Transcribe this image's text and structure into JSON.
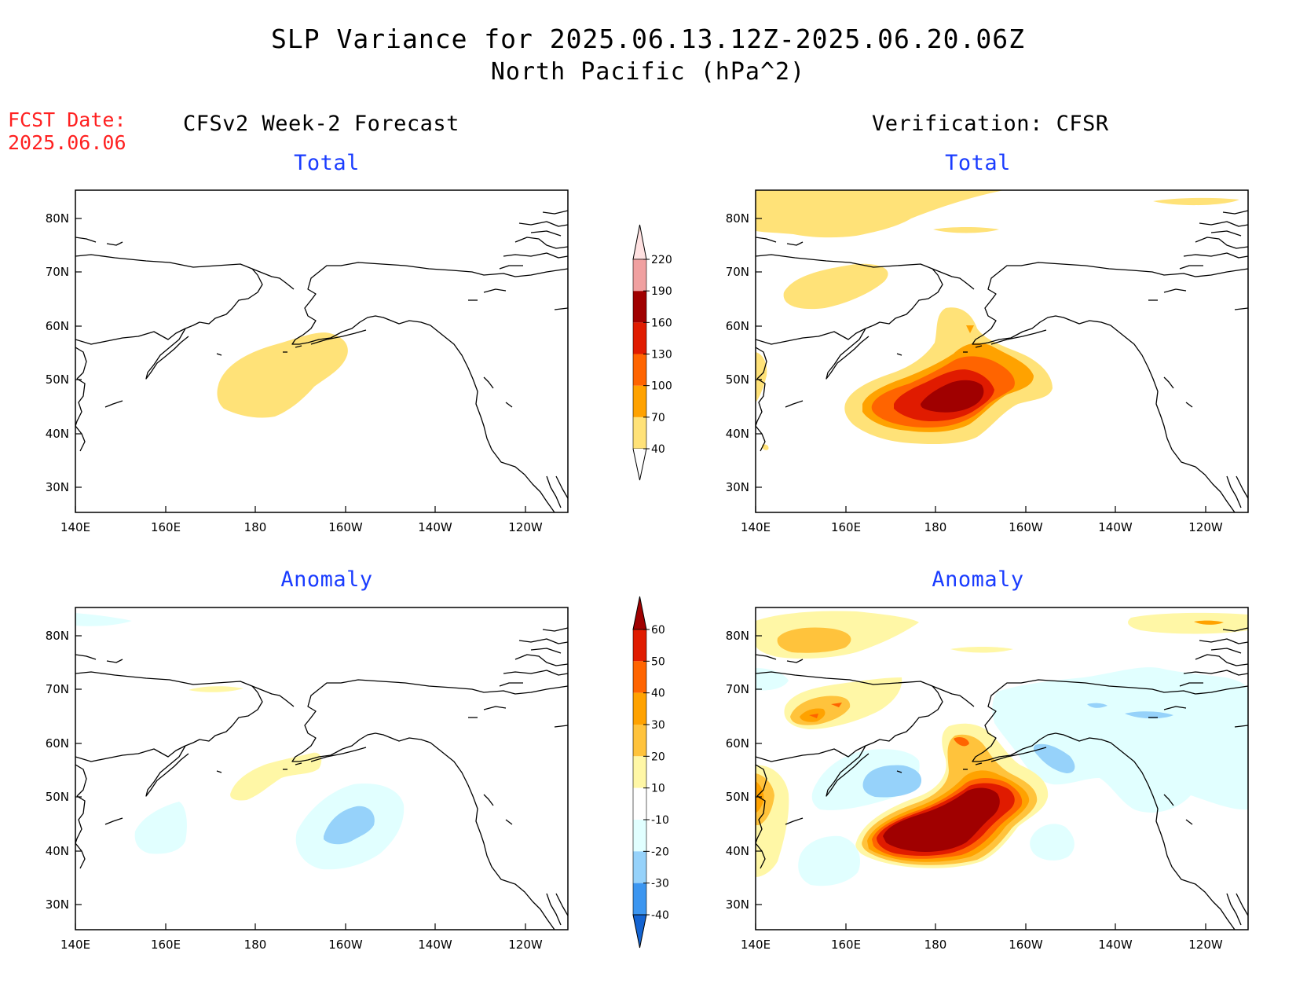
{
  "title_line1": "SLP Variance for 2025.06.13.12Z-2025.06.20.06Z",
  "title_line2": "North Pacific (hPa^2)",
  "fcst_label": "FCST Date:",
  "fcst_date": "2025.06.06",
  "left_header": "CFSv2 Week-2 Forecast",
  "right_header": "Verification: CFSR",
  "panels": [
    {
      "id": "forecast-total",
      "title": "Total"
    },
    {
      "id": "verification-total",
      "title": "Total"
    },
    {
      "id": "forecast-anomaly",
      "title": "Anomaly"
    },
    {
      "id": "verification-anomaly",
      "title": "Anomaly"
    }
  ],
  "lon_ticks": [
    "140E",
    "160E",
    "180",
    "160W",
    "140W",
    "120W"
  ],
  "lat_ticks": [
    "80N",
    "70N",
    "60N",
    "50N",
    "40N",
    "30N"
  ],
  "total_colorbar": {
    "levels": [
      "40",
      "70",
      "100",
      "130",
      "160",
      "190",
      "220"
    ],
    "colors": [
      "#ffe278",
      "#ffa200",
      "#ff6400",
      "#e01b00",
      "#a00000",
      "#f0a0a0",
      "#ffe1e1"
    ]
  },
  "anomaly_colorbar": {
    "levels": [
      "60",
      "50",
      "40",
      "30",
      "20",
      "10",
      "-10",
      "-20",
      "-30",
      "-40"
    ],
    "colors": [
      "#a00000",
      "#e01b00",
      "#ff6400",
      "#ffa200",
      "#ffc33c",
      "#fff7a6",
      "#ffffff",
      "#e1ffff",
      "#96d2fa",
      "#3c96f0",
      "#1464d2"
    ]
  }
}
